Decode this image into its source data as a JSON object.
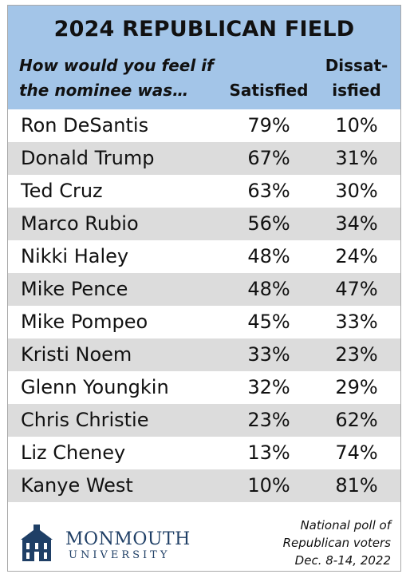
{
  "title": "2024 REPUBLICAN FIELD",
  "question": "How would you feel if the nominee was…",
  "columns": {
    "satisfied": "Satisfied",
    "dissatisfied": "Dissat-\nisfied"
  },
  "chart_data": {
    "type": "table",
    "title": "2024 REPUBLICAN FIELD",
    "columns": [
      "Satisfied",
      "Dissatisfied"
    ],
    "rows": [
      {
        "name": "Ron DeSantis",
        "satisfied": "79%",
        "dissatisfied": "10%"
      },
      {
        "name": "Donald Trump",
        "satisfied": "67%",
        "dissatisfied": "31%"
      },
      {
        "name": "Ted Cruz",
        "satisfied": "63%",
        "dissatisfied": "30%"
      },
      {
        "name": "Marco Rubio",
        "satisfied": "56%",
        "dissatisfied": "34%"
      },
      {
        "name": "Nikki Haley",
        "satisfied": "48%",
        "dissatisfied": "24%"
      },
      {
        "name": "Mike Pence",
        "satisfied": "48%",
        "dissatisfied": "47%"
      },
      {
        "name": "Mike Pompeo",
        "satisfied": "45%",
        "dissatisfied": "33%"
      },
      {
        "name": "Kristi Noem",
        "satisfied": "33%",
        "dissatisfied": "23%"
      },
      {
        "name": "Glenn Youngkin",
        "satisfied": "32%",
        "dissatisfied": "29%"
      },
      {
        "name": "Chris Christie",
        "satisfied": "23%",
        "dissatisfied": "62%"
      },
      {
        "name": "Liz Cheney",
        "satisfied": "13%",
        "dissatisfied": "74%"
      },
      {
        "name": "Kanye West",
        "satisfied": "10%",
        "dissatisfied": "81%"
      }
    ]
  },
  "logo": {
    "name": "MONMOUTH",
    "sub": "UNIVERSITY",
    "icon": "building-icon"
  },
  "note": [
    "National poll of",
    "Republican voters",
    "Dec. 8-14, 2022"
  ],
  "colors": {
    "header_bg": "#a3c5e8",
    "row_shade": "#dcdcdc",
    "logo": "#1f3f66"
  }
}
